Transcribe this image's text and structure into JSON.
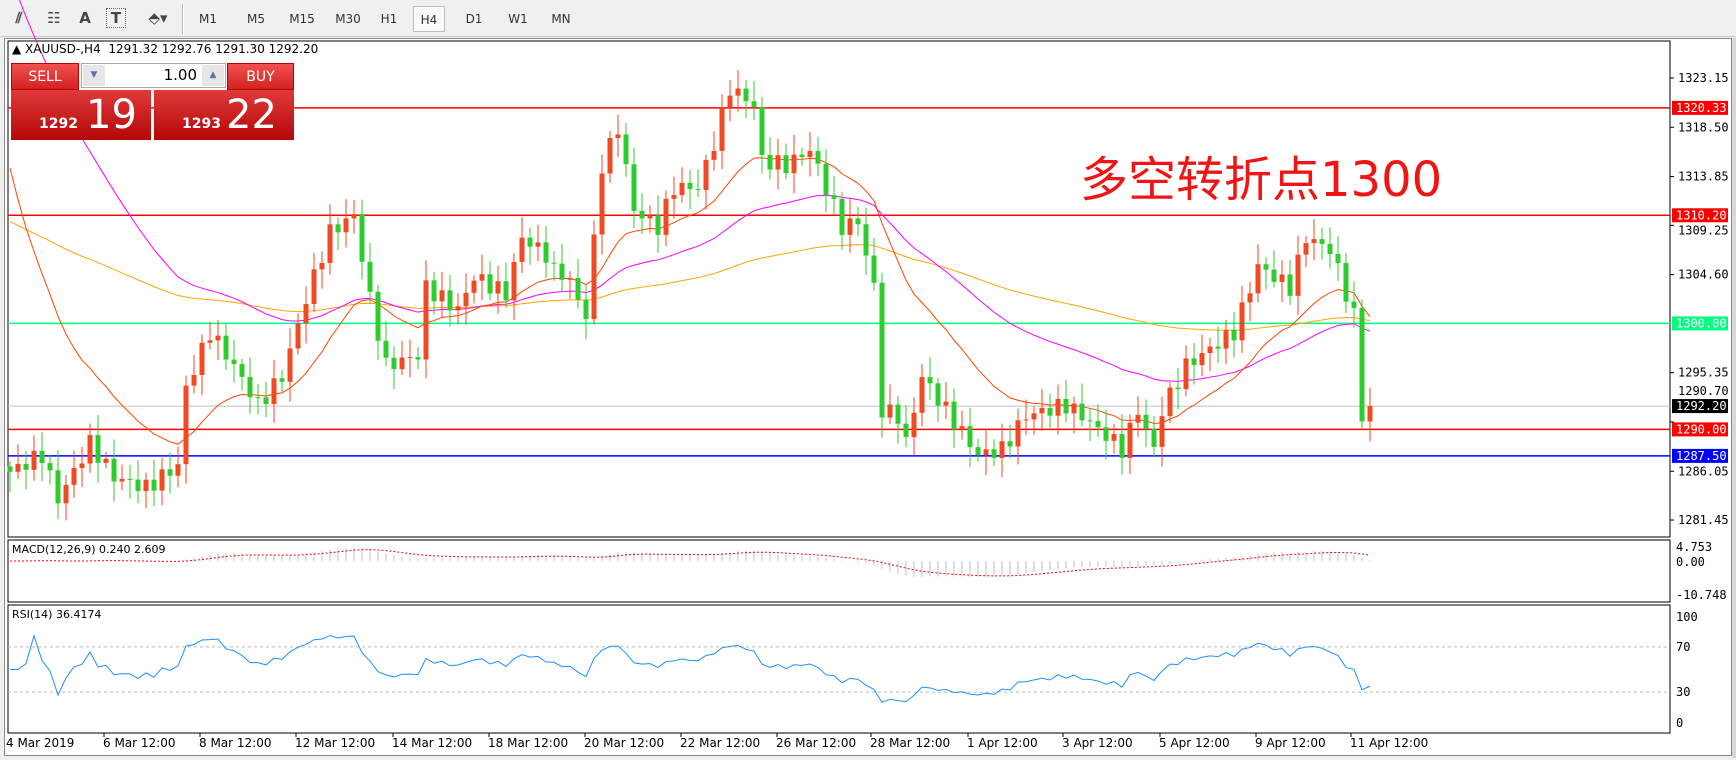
{
  "toolbar": {
    "icons": [
      "indicators-icon",
      "periods-separator-icon",
      "text-icon",
      "text-label-icon",
      "arrows-icon"
    ],
    "timeframes": [
      "M1",
      "M5",
      "M15",
      "M30",
      "H1",
      "H4",
      "D1",
      "W1",
      "MN"
    ],
    "active": "H4"
  },
  "chart": {
    "symbol_line": "XAUUSD-,H4  1291.32 1292.76 1291.30 1292.20",
    "annotation": "多空转折点1300"
  },
  "trade": {
    "sell": "SELL",
    "buy": "BUY",
    "lot": "1.00",
    "sell_small": "1292",
    "sell_big": "19",
    "buy_small": "1293",
    "buy_big": "22"
  },
  "colors": {
    "bull": "#f04a22",
    "bear": "#2fcc2f",
    "ma_slow": "#ffa500",
    "ma_mid": "#ff00ff",
    "ma_fast": "#ff4500",
    "rsi": "#1e90ff",
    "macd_signal": "#ff0000"
  },
  "levels": [
    {
      "price": 1320.33,
      "label": "1320.33",
      "color": "#ff0000"
    },
    {
      "price": 1310.2,
      "label": "1310.20",
      "color": "#ff0000"
    },
    {
      "price": 1300.0,
      "label": "1300.00",
      "color": "#00ff7f"
    },
    {
      "price": 1292.2,
      "label": "1292.20",
      "color": "#000000",
      "line": "#c0c0c0"
    },
    {
      "price": 1290.0,
      "label": "1290.00",
      "color": "#ff0000"
    },
    {
      "price": 1287.5,
      "label": "1287.50",
      "color": "#0000ff"
    }
  ],
  "chart_data": {
    "type": "candlestick",
    "price_ticks": [
      "1323.15",
      "1318.50",
      "1313.85",
      "1309.25",
      "1304.60",
      "1295.35",
      "1290.70",
      "1286.05",
      "1281.45"
    ],
    "time_ticks": [
      "4 Mar 2019",
      "6 Mar 12:00",
      "8 Mar 12:00",
      "12 Mar 12:00",
      "14 Mar 12:00",
      "18 Mar 12:00",
      "20 Mar 12:00",
      "22 Mar 12:00",
      "26 Mar 12:00",
      "28 Mar 12:00",
      "1 Apr 12:00",
      "3 Apr 12:00",
      "5 Apr 12:00",
      "9 Apr 12:00",
      "11 Apr 12:00"
    ],
    "close_waypoints": [
      [
        0,
        1286.0
      ],
      [
        4,
        1287.6
      ],
      [
        6,
        1283.4
      ],
      [
        10,
        1288.7
      ],
      [
        13,
        1285.5
      ],
      [
        17,
        1284.5
      ],
      [
        21,
        1286.6
      ],
      [
        22,
        1293.9
      ],
      [
        25,
        1299.2
      ],
      [
        28,
        1296.0
      ],
      [
        31,
        1292.3
      ],
      [
        34,
        1295.0
      ],
      [
        37,
        1302.3
      ],
      [
        40,
        1308.6
      ],
      [
        43,
        1310.2
      ],
      [
        45,
        1302.3
      ],
      [
        47,
        1296.0
      ],
      [
        51,
        1297.0
      ],
      [
        52,
        1303.4
      ],
      [
        56,
        1301.3
      ],
      [
        58,
        1304.4
      ],
      [
        62,
        1302.8
      ],
      [
        64,
        1308.1
      ],
      [
        67,
        1306.5
      ],
      [
        70,
        1303.9
      ],
      [
        72,
        1300.7
      ],
      [
        74,
        1314.9
      ],
      [
        76,
        1318.5
      ],
      [
        78,
        1310.7
      ],
      [
        81,
        1309.1
      ],
      [
        83,
        1312.8
      ],
      [
        86,
        1312.8
      ],
      [
        88,
        1317.0
      ],
      [
        90,
        1322.2
      ],
      [
        93,
        1320.6
      ],
      [
        94,
        1315.4
      ],
      [
        97,
        1314.9
      ],
      [
        100,
        1316.4
      ],
      [
        102,
        1312.8
      ],
      [
        104,
        1309.1
      ],
      [
        106,
        1309.6
      ],
      [
        108,
        1303.4
      ],
      [
        109,
        1291.8
      ],
      [
        111,
        1291.3
      ],
      [
        112,
        1288.7
      ],
      [
        114,
        1295.0
      ],
      [
        116,
        1292.9
      ],
      [
        119,
        1289.7
      ],
      [
        121,
        1287.6
      ],
      [
        124,
        1288.1
      ],
      [
        127,
        1291.3
      ],
      [
        132,
        1292.3
      ],
      [
        136,
        1290.2
      ],
      [
        139,
        1288.1
      ],
      [
        141,
        1291.8
      ],
      [
        143,
        1288.1
      ],
      [
        144,
        1291.8
      ],
      [
        147,
        1296.0
      ],
      [
        150,
        1297.6
      ],
      [
        153,
        1299.2
      ],
      [
        156,
        1305.4
      ],
      [
        160,
        1303.4
      ],
      [
        162,
        1308.1
      ],
      [
        165,
        1307.0
      ],
      [
        166,
        1305.0
      ],
      [
        168,
        1300.7
      ],
      [
        169,
        1291.3
      ],
      [
        170,
        1292.2
      ]
    ],
    "ylim": [
      1279.5,
      1326
    ],
    "macd": {
      "label": "MACD(12,26,9) 0.240 2.609",
      "ticks": [
        "4.753",
        "0.00",
        "-10.748"
      ]
    },
    "rsi": {
      "label": "RSI(14) 36.4174",
      "ticks": [
        "100",
        "70",
        "30",
        "0"
      ],
      "levels": [
        70,
        30
      ]
    }
  }
}
